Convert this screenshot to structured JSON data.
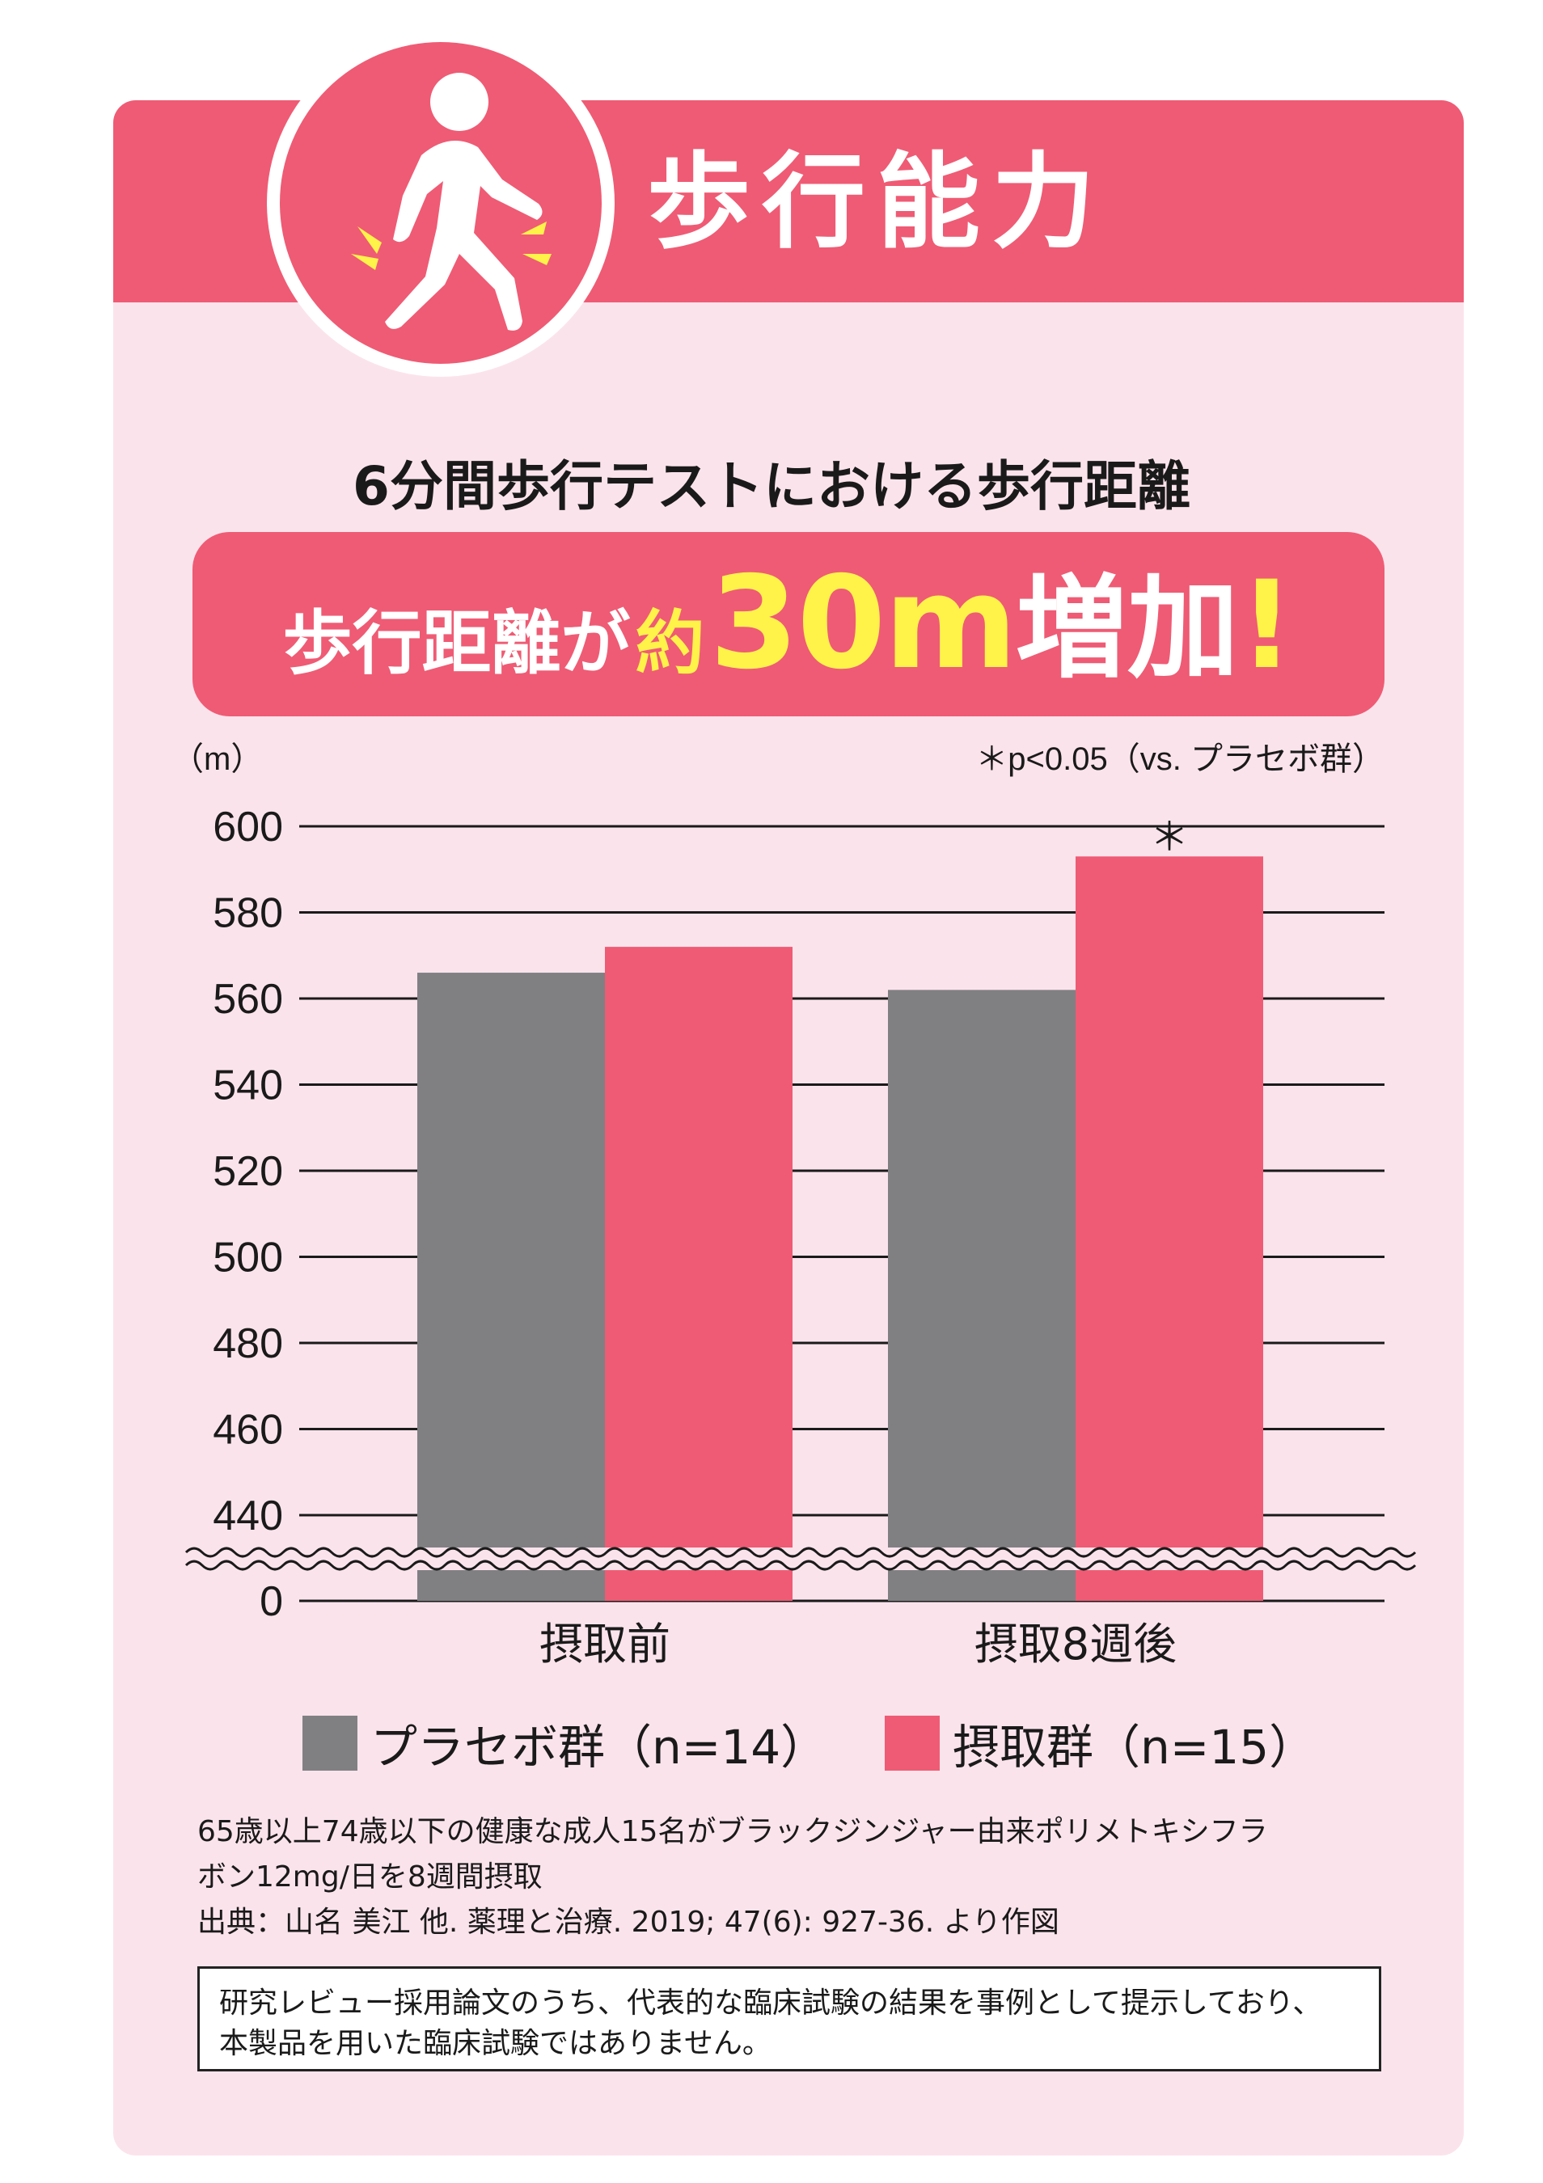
{
  "header": {
    "title": "歩行能力"
  },
  "subtitle": "6分間歩行テストにおける歩行距離",
  "headline": {
    "part1": "歩行距離が",
    "part2": "約",
    "part3": "30m",
    "part4": "増加",
    "part5": "!"
  },
  "colors": {
    "accent": "#ef5b74",
    "placebo": "#808083",
    "highlight": "#fff34a",
    "background": "#fbe3ec"
  },
  "chart_data": {
    "type": "bar",
    "unit_label": "（m）",
    "significance_note": "＊p<0.05（vs. プラセボ群）",
    "categories": [
      "摂取前",
      "摂取8週後"
    ],
    "series": [
      {
        "name": "プラセボ群（n=14）",
        "values": [
          566,
          562
        ],
        "color": "#808083"
      },
      {
        "name": "摂取群（n=15）",
        "values": [
          572,
          593
        ],
        "color": "#ef5b74"
      }
    ],
    "significance_markers": [
      {
        "category": "摂取8週後",
        "series": "摂取群（n=15）",
        "symbol": "＊"
      }
    ],
    "y_ticks": [
      600,
      580,
      560,
      540,
      520,
      500,
      480,
      460,
      440,
      0
    ],
    "ylim": [
      430,
      600
    ],
    "axis_break": true,
    "grid": true,
    "legend_position": "bottom"
  },
  "notes": [
    "65歳以上74歳以下の健康な成人15名がブラックジンジャー由来ポリメトキシフラ",
    "ボン12mg/日を8週間摂取",
    "出典：山名 美江 他. 薬理と治療. 2019; 47(6): 927-36. より作図"
  ],
  "disclaimer": [
    "研究レビュー採用論文のうち、代表的な臨床試験の結果を事例として提示しており、",
    "本製品を用いた臨床試験ではありません。"
  ]
}
